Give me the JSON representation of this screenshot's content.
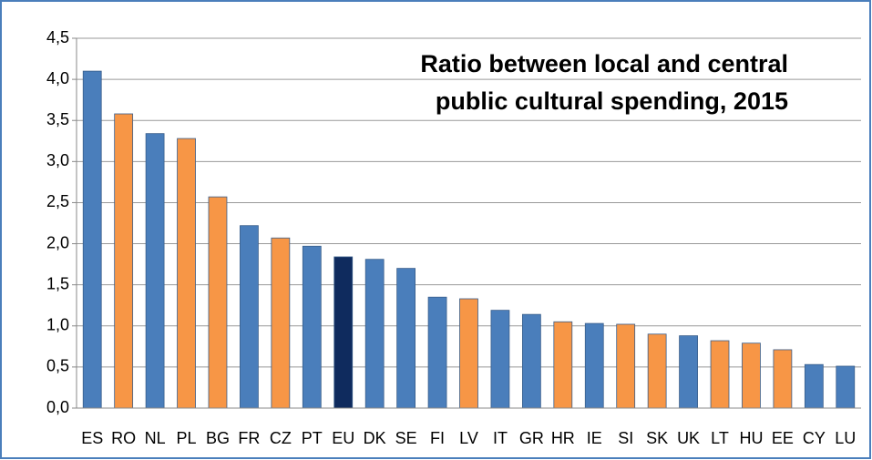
{
  "chart_data": {
    "type": "bar",
    "title": [
      "Ratio between local and central",
      "public cultural spending, 2015"
    ],
    "categories": [
      "ES",
      "RO",
      "NL",
      "PL",
      "BG",
      "FR",
      "CZ",
      "PT",
      "EU",
      "DK",
      "SE",
      "FI",
      "LV",
      "IT",
      "GR",
      "HR",
      "IE",
      "SI",
      "SK",
      "UK",
      "LT",
      "HU",
      "EE",
      "CY",
      "LU"
    ],
    "values": [
      4.1,
      3.58,
      3.34,
      3.28,
      2.57,
      2.22,
      2.07,
      1.97,
      1.84,
      1.81,
      1.7,
      1.35,
      1.33,
      1.19,
      1.14,
      1.05,
      1.03,
      1.02,
      0.9,
      0.88,
      0.82,
      0.79,
      0.71,
      0.53,
      0.51
    ],
    "colors": [
      "#4a7ebb",
      "#f79646",
      "#4a7ebb",
      "#f79646",
      "#f79646",
      "#4a7ebb",
      "#f79646",
      "#4a7ebb",
      "#0f2b5e",
      "#4a7ebb",
      "#4a7ebb",
      "#4a7ebb",
      "#f79646",
      "#4a7ebb",
      "#4a7ebb",
      "#f79646",
      "#4a7ebb",
      "#f79646",
      "#f79646",
      "#4a7ebb",
      "#f79646",
      "#f79646",
      "#f79646",
      "#4a7ebb",
      "#4a7ebb"
    ],
    "ylim": [
      0,
      4.5
    ],
    "yticks": [
      {
        "value": 0,
        "label": "0,0"
      },
      {
        "value": 0.5,
        "label": "0,5"
      },
      {
        "value": 1,
        "label": "1,0"
      },
      {
        "value": 1.5,
        "label": "1,5"
      },
      {
        "value": 2,
        "label": "2,0"
      },
      {
        "value": 2.5,
        "label": "2,5"
      },
      {
        "value": 3,
        "label": "3,0"
      },
      {
        "value": 3.5,
        "label": "3,5"
      },
      {
        "value": 4,
        "label": "4,0"
      },
      {
        "value": 4.5,
        "label": "4,5"
      }
    ],
    "grid": true
  }
}
